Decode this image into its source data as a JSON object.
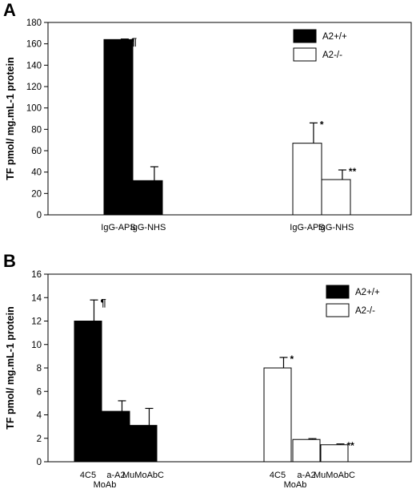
{
  "chart_data": [
    {
      "panel_label": "A",
      "type": "bar",
      "ylabel": "TF pmol/ mg.mL-1 protein",
      "ylim": [
        0,
        180
      ],
      "yticks": [
        0,
        20,
        40,
        60,
        80,
        100,
        120,
        140,
        160,
        180
      ],
      "grid": false,
      "legend_position": "top-right",
      "series": [
        {
          "name": "A2+/+",
          "fill": "#000000",
          "categories": [
            "IgG-APS",
            "IgG-NHS"
          ],
          "values": [
            164,
            32
          ],
          "errors": [
            0.5,
            13
          ]
        },
        {
          "name": "A2-/-",
          "fill": "#ffffff",
          "categories": [
            "IgG-APS",
            "IgG-NHS"
          ],
          "values": [
            67,
            33
          ],
          "errors": [
            19,
            9
          ]
        }
      ],
      "annotations": [
        {
          "text": "¶",
          "series": 0,
          "index": 0
        },
        {
          "text": "*",
          "series": 1,
          "index": 0
        },
        {
          "text": "**",
          "series": 1,
          "index": 1
        }
      ],
      "sublabels": []
    },
    {
      "panel_label": "B",
      "type": "bar",
      "ylabel": "TF pmol/ mg.mL-1 protein",
      "ylim": [
        0,
        16
      ],
      "yticks": [
        0,
        2,
        4,
        6,
        8,
        10,
        12,
        14,
        16
      ],
      "grid": false,
      "legend_position": "top-right",
      "series": [
        {
          "name": "A2+/+",
          "fill": "#000000",
          "categories": [
            "4C5",
            "a-A2",
            "MuMoAbC"
          ],
          "values": [
            12,
            4.3,
            3.1
          ],
          "errors": [
            1.8,
            0.9,
            1.45
          ]
        },
        {
          "name": "A2-/-",
          "fill": "#ffffff",
          "categories": [
            "4C5",
            "a-A2",
            "MuMoAbC"
          ],
          "values": [
            8,
            1.9,
            1.45
          ],
          "errors": [
            0.9,
            0.07,
            0.07
          ]
        }
      ],
      "annotations": [
        {
          "text": "¶",
          "series": 0,
          "index": 0
        },
        {
          "text": "*",
          "series": 1,
          "index": 0
        },
        {
          "text": "**",
          "series": 1,
          "index": 2
        }
      ],
      "sublabels": [
        {
          "text": "MoAb",
          "series": 0,
          "index": 1
        },
        {
          "text": "MoAb",
          "series": 1,
          "index": 1
        }
      ]
    }
  ]
}
